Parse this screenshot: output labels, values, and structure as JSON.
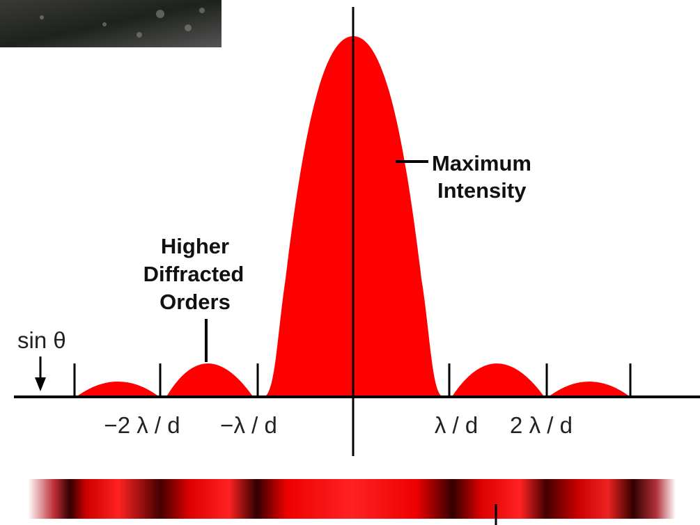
{
  "labels": {
    "maximum_intensity": [
      "Maximum",
      "Intensity"
    ],
    "higher_diffracted_orders": [
      "Higher",
      "Diffracted",
      "Orders"
    ],
    "sin_theta": "sin θ"
  },
  "axis_labels": [
    "−2 λ / d",
    "−λ / d",
    "λ / d",
    "2 λ / d"
  ]
}
